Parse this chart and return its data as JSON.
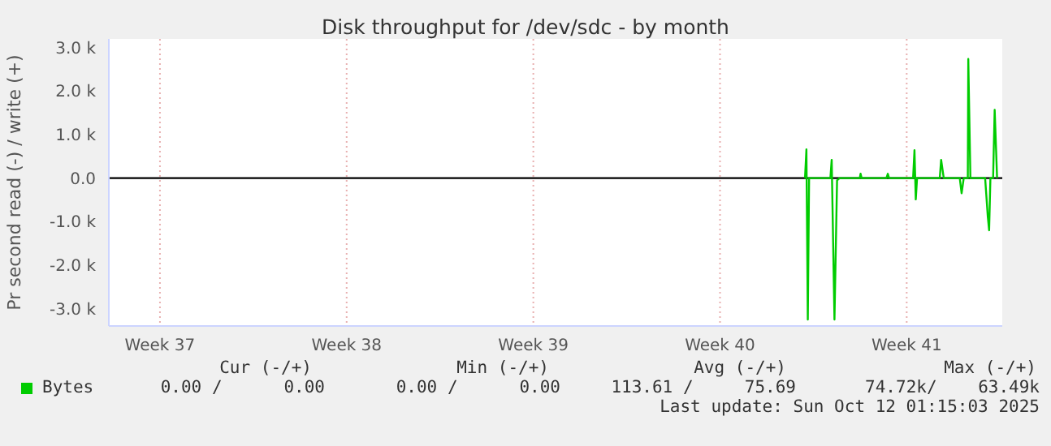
{
  "chart_data": {
    "type": "line",
    "title": "Disk throughput for /dev/sdc - by month",
    "ylabel": "Pr second read (-) / write (+)",
    "xlim": [
      "2025-09-09T08:00",
      "2025-10-12T20:00"
    ],
    "xticks": [
      {
        "value": "2025-09-11T06:00",
        "label": "Week 37"
      },
      {
        "value": "2025-09-18T06:00",
        "label": "Week 38"
      },
      {
        "value": "2025-09-25T06:00",
        "label": "Week 39"
      },
      {
        "value": "2025-10-02T06:00",
        "label": "Week 40"
      },
      {
        "value": "2025-10-09T06:00",
        "label": "Week 41"
      }
    ],
    "ylim": [
      -3400,
      3200
    ],
    "yticks": [
      {
        "value": -3000,
        "label": "-3.0 k"
      },
      {
        "value": -2000,
        "label": "-2.0 k"
      },
      {
        "value": -1000,
        "label": "-1.0 k"
      },
      {
        "value": 0,
        "label": "0.0"
      },
      {
        "value": 1000,
        "label": "1.0 k"
      },
      {
        "value": 2000,
        "label": "2.0 k"
      },
      {
        "value": 3000,
        "label": "3.0 k"
      }
    ],
    "grid": true,
    "legend": "bottom",
    "line_style": "solid",
    "ref_lines": [
      {
        "axis": "y",
        "value": 0,
        "color": "#000000"
      }
    ],
    "series": [
      {
        "name": "Bytes",
        "color": "#00cc00",
        "x": [
          "2025-10-05T10:30",
          "2025-10-05T11:45",
          "2025-10-05T13:00",
          "2025-10-05T14:10",
          "2025-10-06T09:20",
          "2025-10-06T10:30",
          "2025-10-06T13:00",
          "2025-10-06T15:20",
          "2025-10-06T17:45",
          "2025-10-07T11:45",
          "2025-10-07T12:30",
          "2025-10-07T13:25",
          "2025-10-08T11:45",
          "2025-10-08T13:00",
          "2025-10-08T14:10",
          "2025-10-09T11:45",
          "2025-10-09T13:00",
          "2025-10-09T14:10",
          "2025-10-09T15:20",
          "2025-10-10T11:45",
          "2025-10-10T13:00",
          "2025-10-10T15:20",
          "2025-10-11T05:45",
          "2025-10-11T07:25",
          "2025-10-11T09:20",
          "2025-10-11T13:00",
          "2025-10-11T13:25",
          "2025-10-11T15:20",
          "2025-10-12T04:35",
          "2025-10-12T07:00",
          "2025-10-12T08:10",
          "2025-10-12T09:20",
          "2025-10-12T11:45",
          "2025-10-12T13:10",
          "2025-10-12T15:20"
        ],
        "values": [
          0,
          660,
          -3250,
          0,
          0,
          420,
          -3250,
          -50,
          0,
          0,
          100,
          0,
          0,
          100,
          0,
          0,
          640,
          -490,
          0,
          0,
          420,
          0,
          0,
          -350,
          0,
          0,
          2740,
          0,
          0,
          -890,
          -1200,
          0,
          0,
          1570,
          0
        ]
      }
    ],
    "annotations": [
      "Cur (-/+)",
      "Min (-/+)",
      "Avg (-/+)",
      "Max (-/+)",
      "0.00 /      0.00",
      "0.00 /      0.00",
      "113.61 /     75.69",
      "74.72k/    63.49k",
      "Last update: Sun Oct 12 01:15:03 2025"
    ]
  }
}
